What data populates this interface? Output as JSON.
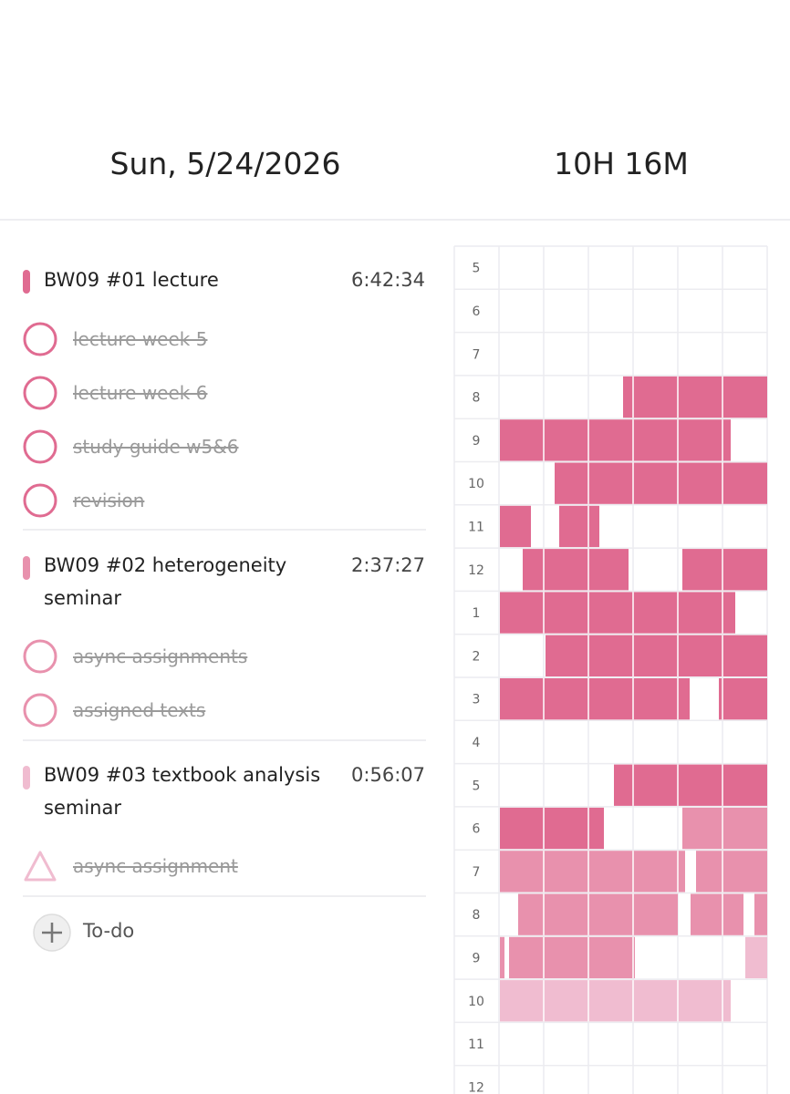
{
  "header": {
    "date": "Sun, 5/24/2026",
    "total": "10H 16M"
  },
  "projects": [
    {
      "title": "BW09 #01 lecture",
      "time": "6:42:34",
      "tasks": [
        "lecture week 5",
        "lecture week 6",
        "study guide w5&6",
        "revision"
      ]
    },
    {
      "title": "BW09 #02 heterogeneity seminar",
      "time": "2:37:27",
      "tasks": [
        "async assignments",
        "assigned texts"
      ]
    },
    {
      "title": "BW09 #03 textbook analysis seminar",
      "time": "0:56:07",
      "tasks": [
        "async assignment"
      ]
    }
  ],
  "add_todo": "To-do",
  "timeline": {
    "hours": [
      "5",
      "6",
      "7",
      "8",
      "9",
      "10",
      "11",
      "12",
      "1",
      "2",
      "3",
      "4",
      "5",
      "6",
      "7",
      "8",
      "9",
      "10",
      "11",
      "12"
    ]
  }
}
